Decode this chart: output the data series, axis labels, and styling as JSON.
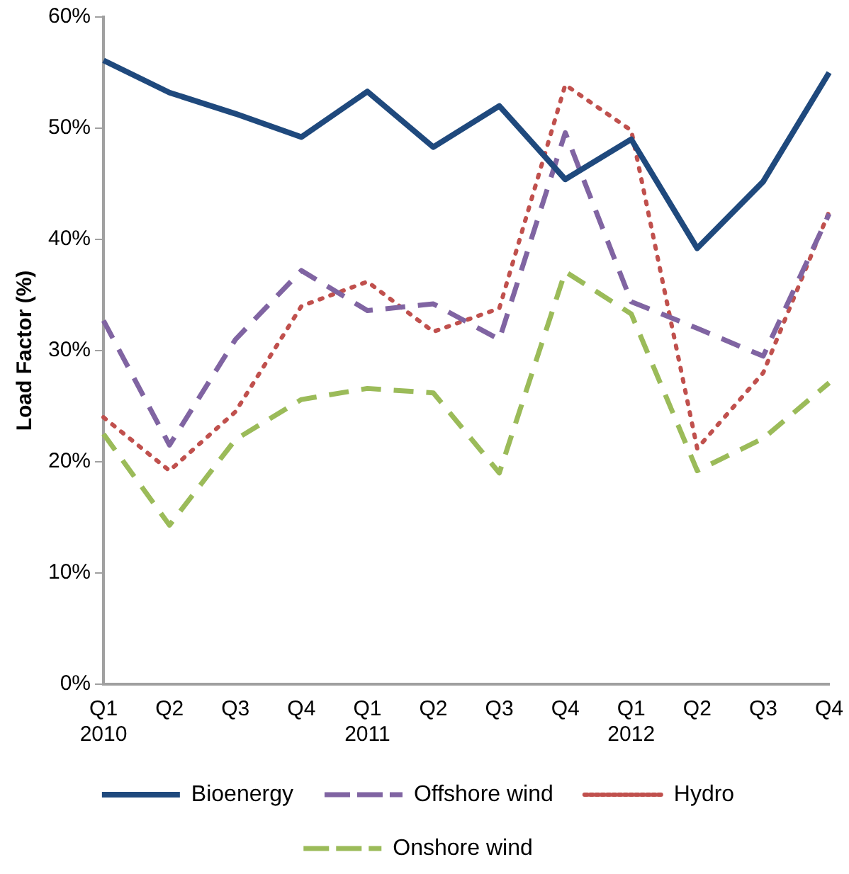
{
  "chart_data": {
    "type": "line",
    "ylabel": "Load Factor (%)",
    "categories": [
      "Q1\n2010",
      "Q2",
      "Q3",
      "Q4",
      "Q1\n2011",
      "Q2",
      "Q3",
      "Q4",
      "Q1\n2012",
      "Q2",
      "Q3",
      "Q4"
    ],
    "series": [
      {
        "name": "Bioenergy",
        "color": "#1f497d",
        "line_style": "solid",
        "values": [
          56.1,
          53.2,
          51.3,
          49.2,
          53.3,
          48.3,
          52.0,
          45.4,
          49.0,
          39.2,
          45.2,
          55.0
        ]
      },
      {
        "name": "Offshore wind",
        "color": "#8064a2",
        "line_style": "dashed",
        "values": [
          32.7,
          21.5,
          31.0,
          37.2,
          33.6,
          34.2,
          31.0,
          49.6,
          34.4,
          32.0,
          29.5,
          42.3
        ]
      },
      {
        "name": "Hydro",
        "color": "#c0504d",
        "line_style": "dotted",
        "values": [
          24.0,
          19.2,
          24.5,
          34.0,
          36.2,
          31.7,
          33.8,
          53.9,
          49.8,
          21.2,
          28.0,
          42.5
        ]
      },
      {
        "name": "Onshore wind",
        "color": "#9bbb59",
        "line_style": "dashed",
        "values": [
          22.5,
          14.3,
          22.0,
          25.6,
          26.6,
          26.2,
          19.0,
          37.1,
          33.3,
          19.2,
          22.1,
          27.1
        ]
      }
    ],
    "ylim": [
      0,
      60
    ],
    "yticks": [
      {
        "value": 0,
        "label": "0%"
      },
      {
        "value": 10,
        "label": "10%"
      },
      {
        "value": 20,
        "label": "20%"
      },
      {
        "value": 30,
        "label": "30%"
      },
      {
        "value": 40,
        "label": "40%"
      },
      {
        "value": 50,
        "label": "50%"
      },
      {
        "value": 60,
        "label": "60%"
      }
    ],
    "grid": false,
    "legend": "bottom",
    "marker": "none"
  }
}
